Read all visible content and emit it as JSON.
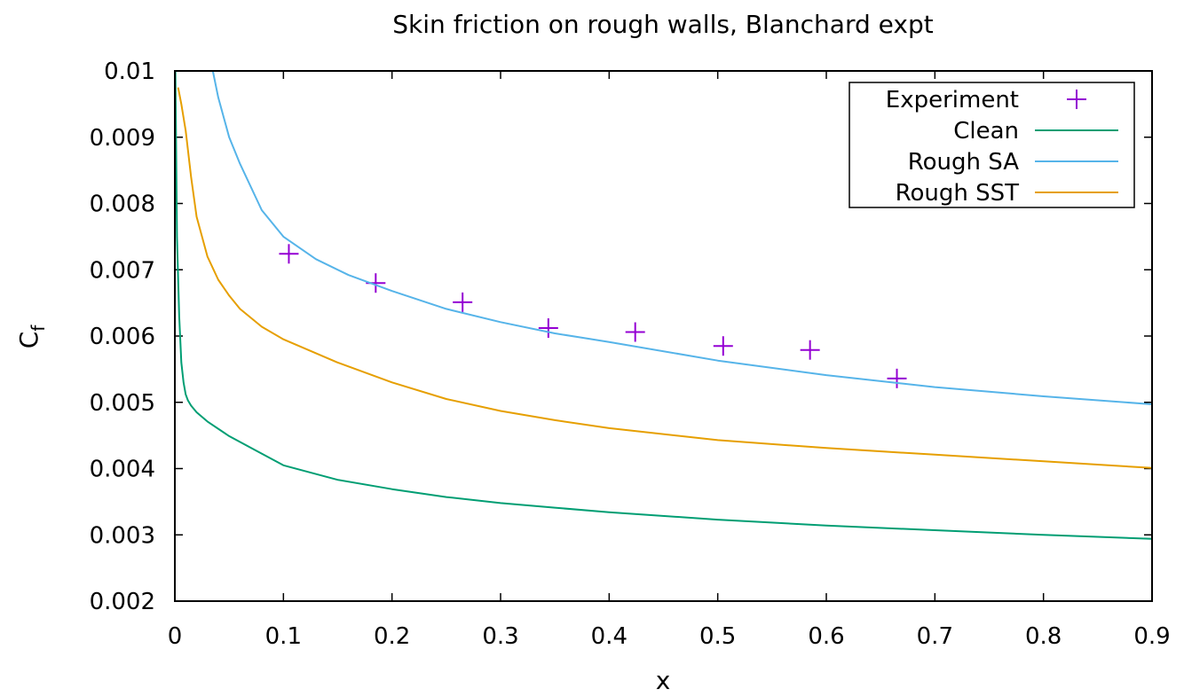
{
  "chart_data": {
    "type": "line",
    "title": "Skin friction on rough walls, Blanchard expt",
    "xlabel": "x",
    "ylabel_main": "C",
    "ylabel_sub": "f",
    "xlim": [
      0,
      0.9
    ],
    "ylim": [
      0.002,
      0.01
    ],
    "xticks": [
      0,
      0.1,
      0.2,
      0.3,
      0.4,
      0.5,
      0.6,
      0.7,
      0.8,
      0.9
    ],
    "xtick_labels": [
      "0",
      "0.1",
      "0.2",
      "0.3",
      "0.4",
      "0.5",
      "0.6",
      "0.7",
      "0.8",
      "0.9"
    ],
    "yticks": [
      0.002,
      0.003,
      0.004,
      0.005,
      0.006,
      0.007,
      0.008,
      0.009,
      0.01
    ],
    "ytick_labels": [
      "0.002",
      "0.003",
      "0.004",
      "0.005",
      "0.006",
      "0.007",
      "0.008",
      "0.009",
      "0.01"
    ],
    "legend_position": "top-right",
    "series": [
      {
        "name": "Experiment",
        "kind": "points",
        "color": "#9400d3",
        "x": [
          0.105,
          0.185,
          0.265,
          0.344,
          0.424,
          0.505,
          0.585,
          0.665
        ],
        "y": [
          0.00724,
          0.0068,
          0.00651,
          0.00612,
          0.00606,
          0.00585,
          0.00579,
          0.00536
        ]
      },
      {
        "name": "Clean",
        "kind": "line",
        "color": "#009e73",
        "x": [
          0.0005,
          0.002,
          0.004,
          0.006,
          0.008,
          0.01,
          0.012,
          0.015,
          0.02,
          0.03,
          0.05,
          0.1,
          0.15,
          0.2,
          0.25,
          0.3,
          0.35,
          0.4,
          0.5,
          0.6,
          0.7,
          0.8,
          0.9
        ],
        "y": [
          0.01,
          0.0075,
          0.0063,
          0.0056,
          0.0053,
          0.00512,
          0.00503,
          0.00495,
          0.00485,
          0.00471,
          0.00449,
          0.00405,
          0.00383,
          0.00369,
          0.00357,
          0.00348,
          0.00341,
          0.00334,
          0.00323,
          0.00314,
          0.00307,
          0.003,
          0.00294
        ]
      },
      {
        "name": "Rough SA",
        "kind": "line",
        "color": "#56b4e9",
        "x": [
          0.035,
          0.04,
          0.05,
          0.06,
          0.08,
          0.1,
          0.13,
          0.16,
          0.2,
          0.25,
          0.3,
          0.35,
          0.4,
          0.5,
          0.6,
          0.7,
          0.8,
          0.9
        ],
        "y": [
          0.01,
          0.0096,
          0.009,
          0.0086,
          0.0079,
          0.0075,
          0.00716,
          0.00692,
          0.00668,
          0.00641,
          0.00621,
          0.00604,
          0.00591,
          0.00563,
          0.00541,
          0.00523,
          0.00509,
          0.00497
        ]
      },
      {
        "name": "Rough SST",
        "kind": "line",
        "color": "#e69f00",
        "x": [
          0.003,
          0.006,
          0.01,
          0.015,
          0.02,
          0.03,
          0.04,
          0.05,
          0.06,
          0.08,
          0.1,
          0.15,
          0.2,
          0.25,
          0.3,
          0.35,
          0.4,
          0.5,
          0.6,
          0.7,
          0.8,
          0.9
        ],
        "y": [
          0.00975,
          0.0095,
          0.0091,
          0.0084,
          0.0078,
          0.0072,
          0.00685,
          0.00661,
          0.00641,
          0.00614,
          0.00595,
          0.0056,
          0.0053,
          0.00505,
          0.00487,
          0.00473,
          0.00461,
          0.00443,
          0.00431,
          0.00421,
          0.00411,
          0.00401
        ]
      }
    ]
  }
}
